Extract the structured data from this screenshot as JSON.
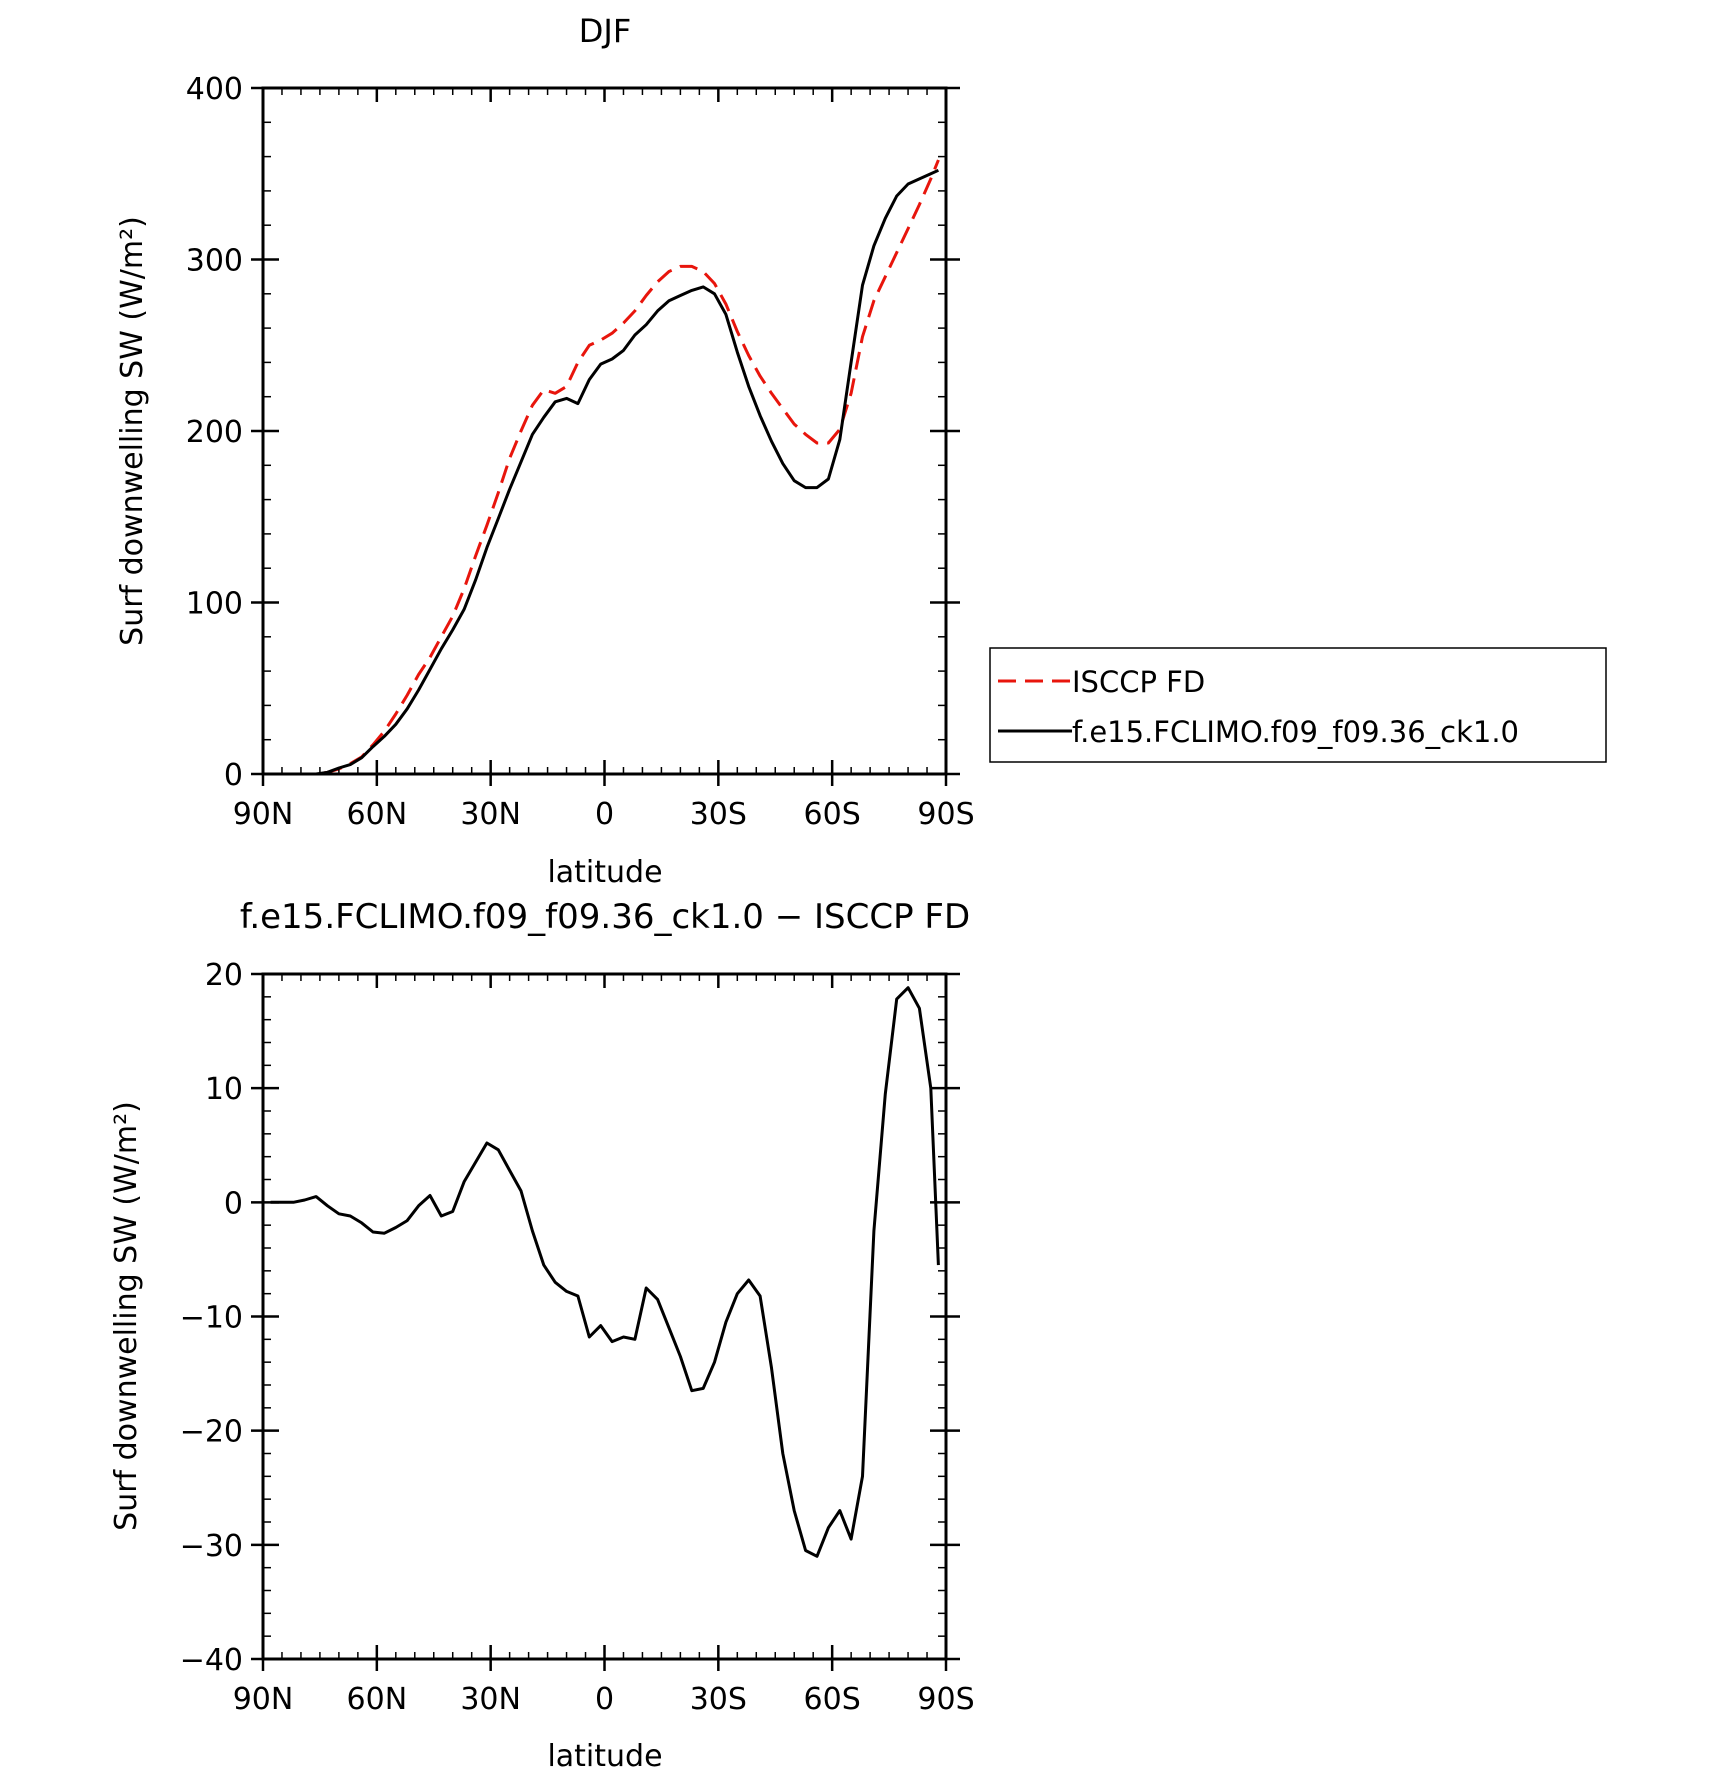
{
  "chart_data": [
    {
      "type": "line",
      "title": "DJF",
      "xlabel": "latitude",
      "ylabel": "Surf downwelling SW (W/m²)",
      "xlim": [
        90,
        -90
      ],
      "ylim": [
        0,
        400
      ],
      "xticks": [
        {
          "v": 90,
          "label": "90N"
        },
        {
          "v": 60,
          "label": "60N"
        },
        {
          "v": 30,
          "label": "30N"
        },
        {
          "v": 0,
          "label": "0"
        },
        {
          "v": -30,
          "label": "30S"
        },
        {
          "v": -60,
          "label": "60S"
        },
        {
          "v": -90,
          "label": "90S"
        }
      ],
      "yticks": [
        {
          "v": 0,
          "label": "0"
        },
        {
          "v": 100,
          "label": "100"
        },
        {
          "v": 200,
          "label": "200"
        },
        {
          "v": 300,
          "label": "300"
        },
        {
          "v": 400,
          "label": "400"
        }
      ],
      "legend": "right",
      "series": [
        {
          "name": "ISCCP FD",
          "color": "#e8150c",
          "dash": true,
          "x": [
            88,
            85,
            82,
            79,
            76,
            73,
            70,
            67,
            64,
            61,
            58,
            55,
            52,
            49,
            46,
            43,
            40,
            37,
            34,
            31,
            28,
            25,
            22,
            19,
            16,
            13,
            10,
            7,
            4,
            1,
            -2,
            -5,
            -8,
            -11,
            -14,
            -17,
            -20,
            -23,
            -26,
            -29,
            -32,
            -35,
            -38,
            -41,
            -44,
            -47,
            -50,
            -53,
            -56,
            -59,
            -62,
            -65,
            -68,
            -71,
            -74,
            -77,
            -80,
            -83,
            -86,
            -88
          ],
          "y": [
            0,
            0,
            0,
            0,
            0,
            1,
            3,
            6,
            10,
            17,
            25,
            35,
            46,
            58,
            68,
            80,
            92,
            108,
            127,
            145,
            164,
            184,
            200,
            215,
            224,
            222,
            226,
            240,
            250,
            253,
            257,
            263,
            270,
            279,
            287,
            293,
            296,
            296,
            293,
            286,
            274,
            258,
            244,
            232,
            222,
            213,
            204,
            198,
            193,
            193,
            201,
            222,
            255,
            276,
            290,
            304,
            318,
            332,
            347,
            358
          ]
        },
        {
          "name": "f.e15.FCLIMO.f09_f09.36_ck1.0",
          "color": "#000000",
          "dash": false,
          "x": [
            88,
            85,
            82,
            79,
            76,
            73,
            70,
            67,
            64,
            61,
            58,
            55,
            52,
            49,
            46,
            43,
            40,
            37,
            34,
            31,
            28,
            25,
            22,
            19,
            16,
            13,
            10,
            7,
            4,
            1,
            -2,
            -5,
            -8,
            -11,
            -14,
            -17,
            -20,
            -23,
            -26,
            -29,
            -32,
            -35,
            -38,
            -41,
            -44,
            -47,
            -50,
            -53,
            -56,
            -59,
            -62,
            -65,
            -68,
            -71,
            -74,
            -77,
            -80,
            -83,
            -86,
            -88
          ],
          "y": [
            0,
            0,
            0,
            0,
            0,
            1,
            3.5,
            5.5,
            9.5,
            16,
            22,
            29,
            38,
            49,
            61,
            73,
            84,
            96,
            113,
            132,
            149,
            166,
            182,
            198,
            208,
            217,
            219,
            216,
            230,
            239,
            242,
            247,
            256,
            262,
            270,
            276,
            279,
            282,
            284,
            280,
            268,
            246,
            226,
            209,
            194,
            181,
            171,
            167,
            167,
            172,
            195,
            240,
            285,
            308,
            324,
            337,
            344,
            347,
            350,
            352
          ]
        }
      ]
    },
    {
      "type": "line",
      "title": "f.e15.FCLIMO.f09_f09.36_ck1.0 − ISCCP FD",
      "xlabel": "latitude",
      "ylabel": "Surf downwelling SW (W/m²)",
      "xlim": [
        90,
        -90
      ],
      "ylim": [
        -40,
        20
      ],
      "xticks": [
        {
          "v": 90,
          "label": "90N"
        },
        {
          "v": 60,
          "label": "60N"
        },
        {
          "v": 30,
          "label": "30N"
        },
        {
          "v": 0,
          "label": "0"
        },
        {
          "v": -30,
          "label": "30S"
        },
        {
          "v": -60,
          "label": "60S"
        },
        {
          "v": -90,
          "label": "90S"
        }
      ],
      "yticks": [
        {
          "v": -40,
          "label": "−40"
        },
        {
          "v": -30,
          "label": "−30"
        },
        {
          "v": -20,
          "label": "−20"
        },
        {
          "v": -10,
          "label": "−10"
        },
        {
          "v": 0,
          "label": "0"
        },
        {
          "v": 10,
          "label": "10"
        },
        {
          "v": 20,
          "label": "20"
        }
      ],
      "series": [
        {
          "name": "",
          "color": "#000000",
          "dash": false,
          "x": [
            88,
            85,
            82,
            79,
            76,
            73,
            70,
            67,
            64,
            61,
            58,
            55,
            52,
            49,
            46,
            43,
            40,
            37,
            34,
            31,
            28,
            25,
            22,
            19,
            16,
            13,
            10,
            7,
            4,
            1,
            -2,
            -5,
            -8,
            -11,
            -14,
            -17,
            -20,
            -23,
            -26,
            -29,
            -32,
            -35,
            -38,
            -41,
            -44,
            -47,
            -50,
            -53,
            -56,
            -59,
            -62,
            -65,
            -68,
            -71,
            -74,
            -77,
            -80,
            -83,
            -86,
            -88
          ],
          "y": [
            0,
            0,
            0,
            0.2,
            0.5,
            -0.3,
            -1.0,
            -1.2,
            -1.8,
            -2.6,
            -2.7,
            -2.2,
            -1.6,
            -0.3,
            0.6,
            -1.2,
            -0.8,
            1.8,
            3.5,
            5.2,
            4.6,
            2.8,
            1.0,
            -2.5,
            -5.5,
            -7.0,
            -7.8,
            -8.2,
            -11.8,
            -10.8,
            -12.2,
            -11.8,
            -12.0,
            -7.5,
            -8.5,
            -11.0,
            -13.5,
            -16.5,
            -16.3,
            -14.0,
            -10.5,
            -8.0,
            -6.8,
            -8.2,
            -14.5,
            -22.0,
            -27.0,
            -30.5,
            -31.0,
            -28.5,
            -27.0,
            -29.5,
            -24.0,
            -2.5,
            9.5,
            17.8,
            18.8,
            17.0,
            10.0,
            -5.5
          ]
        }
      ]
    }
  ]
}
